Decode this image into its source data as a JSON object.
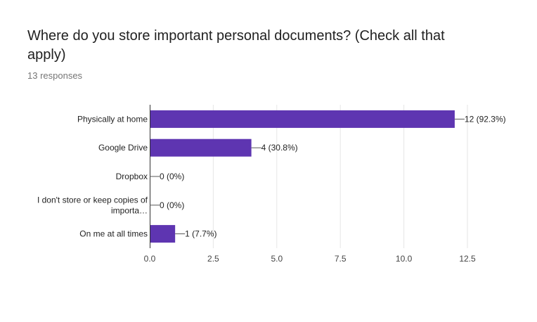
{
  "header": {
    "title": "Where do you store important personal documents? (Check all that apply)",
    "responses": "13 responses"
  },
  "chart_data": {
    "type": "bar",
    "orientation": "horizontal",
    "categories": [
      [
        "Physically at home"
      ],
      [
        "Google Drive"
      ],
      [
        "Dropbox"
      ],
      [
        "I don't store or keep copies of",
        "importa…"
      ],
      [
        "On me at all times"
      ]
    ],
    "values": [
      12,
      4,
      0,
      0,
      1
    ],
    "data_labels": [
      "12 (92.3%)",
      "4 (30.8%)",
      "0 (0%)",
      "0 (0%)",
      "1 (7.7%)"
    ],
    "xticks": [
      "0.0",
      "2.5",
      "5.0",
      "7.5",
      "10.0",
      "12.5"
    ],
    "xlim": [
      0,
      12.5
    ],
    "bar_color": "#5e35b1",
    "grid": true,
    "legend": "none"
  }
}
